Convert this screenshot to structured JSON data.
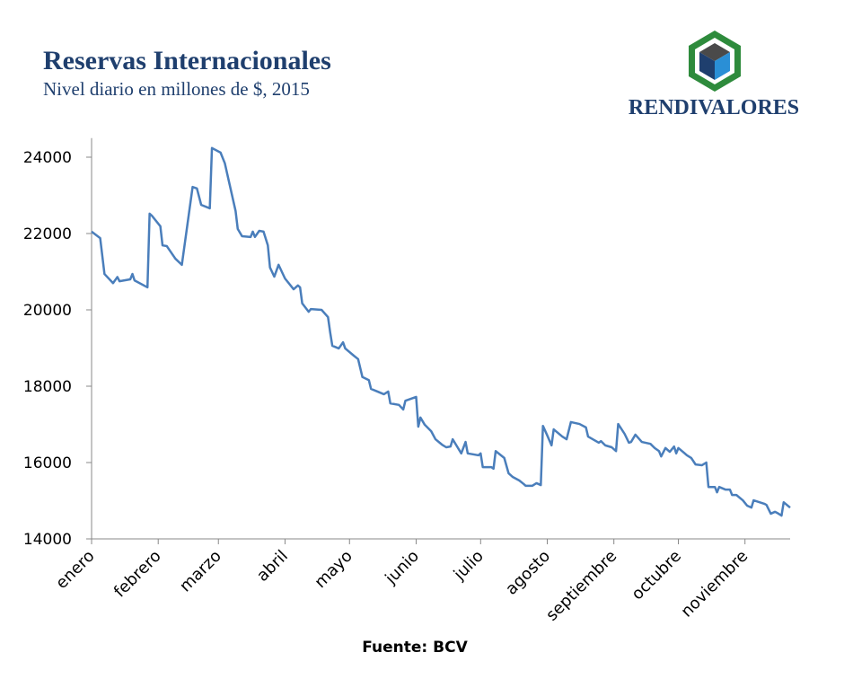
{
  "brand": "RENDIVALORES",
  "chart_data": {
    "type": "line",
    "title": "Reservas Internacionales",
    "subtitle": "Nivel diario en millones de $, 2015",
    "source": "Fuente: BCV",
    "color": "#4a7ebb",
    "xlim": [
      0,
      325
    ],
    "xticks": [
      {
        "value": 0,
        "label": "enero"
      },
      {
        "value": 31,
        "label": "febrero"
      },
      {
        "value": 59,
        "label": "marzo"
      },
      {
        "value": 90,
        "label": "abril"
      },
      {
        "value": 120,
        "label": "mayo"
      },
      {
        "value": 151,
        "label": "junio"
      },
      {
        "value": 181,
        "label": "julio"
      },
      {
        "value": 212,
        "label": "agosto"
      },
      {
        "value": 243,
        "label": "septiembre"
      },
      {
        "value": 273,
        "label": "octubre"
      },
      {
        "value": 304,
        "label": "noviembre"
      }
    ],
    "ylim": [
      14000,
      24500
    ],
    "yticks": [
      14000,
      16000,
      18000,
      20000,
      22000,
      24000
    ],
    "x": [
      0,
      4,
      6,
      10,
      12,
      13,
      18,
      19,
      20,
      26,
      27,
      28,
      32,
      33,
      35,
      39,
      42,
      47,
      49,
      51,
      55,
      56,
      60,
      62,
      67,
      68,
      70,
      74,
      75,
      76,
      78,
      80,
      82,
      83,
      85,
      87,
      90,
      94,
      96,
      97,
      98,
      101,
      102,
      107,
      110,
      111,
      112,
      115,
      117,
      118,
      122,
      124,
      126,
      129,
      130,
      133,
      136,
      138,
      139,
      143,
      145,
      146,
      151,
      152,
      153,
      155,
      158,
      160,
      163,
      165,
      167,
      168,
      172,
      174,
      175,
      178,
      180,
      181,
      182,
      186,
      187,
      188,
      192,
      194,
      196,
      199,
      201,
      202,
      205,
      207,
      209,
      210,
      212,
      214,
      215,
      219,
      221,
      223,
      227,
      230,
      231,
      236,
      237,
      239,
      242,
      244,
      245,
      248,
      250,
      251,
      253,
      256,
      260,
      262,
      264,
      265,
      267,
      269,
      271,
      272,
      273,
      277,
      279,
      281,
      284,
      286,
      287,
      290,
      291,
      292,
      295,
      297,
      298,
      300,
      303,
      305,
      307,
      308,
      313,
      314,
      316,
      318,
      319,
      321,
      322,
      325
    ],
    "series": [
      {
        "name": "Reservas",
        "color": "#4a7ebb",
        "values": [
          22050,
          21880,
          20940,
          20700,
          20860,
          20750,
          20800,
          20940,
          20770,
          20590,
          22520,
          22470,
          22190,
          21690,
          21670,
          21340,
          21180,
          23220,
          23180,
          22750,
          22660,
          24240,
          24120,
          23840,
          22590,
          22120,
          21930,
          21910,
          22050,
          21910,
          22070,
          22050,
          21690,
          21110,
          20870,
          21180,
          20820,
          20540,
          20640,
          20590,
          20170,
          19950,
          20020,
          20000,
          19810,
          19410,
          19060,
          18990,
          19150,
          18990,
          18800,
          18710,
          18240,
          18160,
          17930,
          17860,
          17790,
          17860,
          17550,
          17510,
          17390,
          17620,
          17720,
          16940,
          17180,
          16990,
          16820,
          16610,
          16470,
          16400,
          16420,
          16610,
          16240,
          16540,
          16240,
          16210,
          16190,
          16240,
          15880,
          15880,
          15840,
          16300,
          16120,
          15720,
          15620,
          15530,
          15440,
          15390,
          15390,
          15460,
          15410,
          16960,
          16710,
          16450,
          16870,
          16680,
          16610,
          17060,
          17010,
          16920,
          16680,
          16520,
          16560,
          16450,
          16400,
          16300,
          17010,
          16750,
          16520,
          16540,
          16730,
          16540,
          16490,
          16380,
          16300,
          16160,
          16380,
          16280,
          16420,
          16240,
          16380,
          16190,
          16120,
          15950,
          15930,
          16000,
          15360,
          15360,
          15220,
          15360,
          15290,
          15290,
          15150,
          15150,
          15010,
          14870,
          14820,
          15010,
          14920,
          14890,
          14660,
          14710,
          14680,
          14610,
          14960,
          14820
        ]
      }
    ]
  }
}
